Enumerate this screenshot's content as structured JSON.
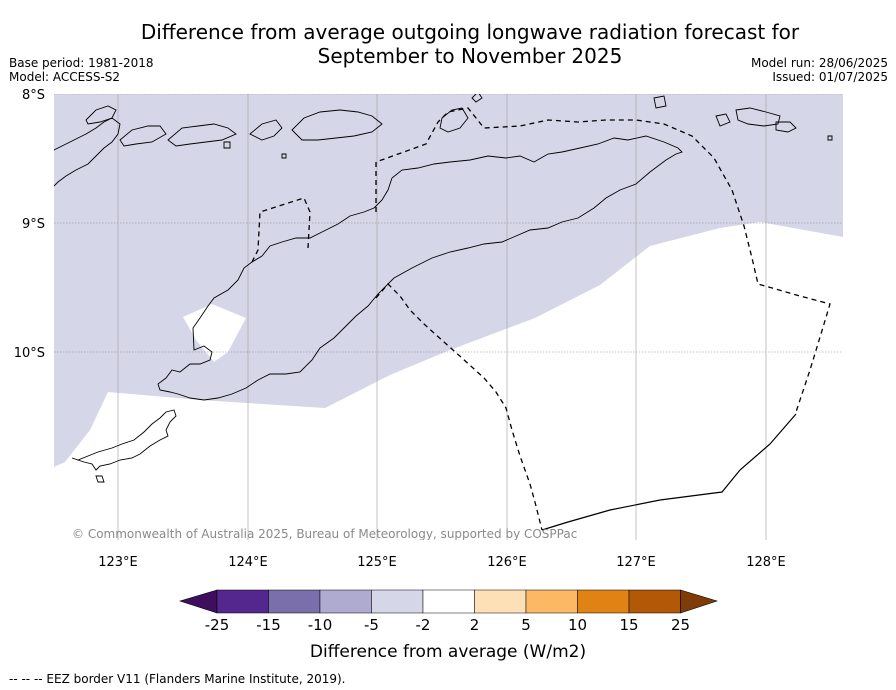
{
  "header": {
    "title_line1": "Difference from average outgoing longwave radiation forecast for",
    "title_line2": "September to November 2025",
    "base_period": "Base period: 1981-2018",
    "model": "Model: ACCESS-S2",
    "model_run": "Model run: 28/06/2025",
    "issued": "Issued: 01/07/2025"
  },
  "map": {
    "lat_labels": [
      "8°S",
      "9°S",
      "10°S"
    ],
    "lon_labels": [
      "123°E",
      "124°E",
      "125°E",
      "126°E",
      "127°E",
      "128°E"
    ],
    "copyright": "© Commonwealth of Australia 2025, Bureau of Meteorology, supported by COSPPac",
    "shaded_category": "-5 to -2",
    "colors": {
      "shade": "#d6d6e9",
      "land_outline": "#000000",
      "eez_border": "#000000",
      "grid": "#888888"
    }
  },
  "colorbar": {
    "label": "Difference from average (W/m2)",
    "ticks": [
      "-25",
      "-15",
      "-10",
      "-5",
      "-2",
      "2",
      "5",
      "10",
      "15",
      "25"
    ],
    "colors": [
      "#3f0f5e",
      "#54278f",
      "#7b6fab",
      "#aeaad0",
      "#d6d6e9",
      "#ffffff",
      "#fee0b6",
      "#fdb863",
      "#e08214",
      "#b35806",
      "#7f3b08"
    ]
  },
  "footnote": "-- -- -- EEZ border V11 (Flanders Marine Institute, 2019)."
}
